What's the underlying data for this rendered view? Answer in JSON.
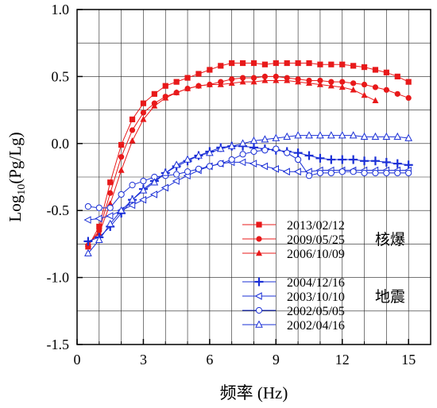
{
  "chart_data": {
    "type": "line",
    "title": "",
    "xlabel": "频率 (Hz)",
    "ylabel_main": "Log",
    "ylabel_sub": "10",
    "ylabel_rest": "(Pg/Lg)",
    "xlim": [
      0,
      16
    ],
    "ylim": [
      -1.5,
      1.0
    ],
    "xticks": [
      0,
      3,
      6,
      9,
      12,
      15
    ],
    "xtick_labels": [
      "0",
      "3",
      "6",
      "9",
      "12",
      "15"
    ],
    "yticks": [
      1.0,
      0.5,
      0.0,
      -0.5,
      -1.0,
      -1.5
    ],
    "ytick_labels": [
      "1.0",
      "0.5",
      "0.0",
      "-0.5",
      "-1.0",
      "-1.5"
    ],
    "grid": true,
    "legend_placement": "bottom-right",
    "legend_groups": [
      {
        "label": "核爆",
        "series": [
          0,
          1,
          2
        ]
      },
      {
        "label": "地震",
        "series": [
          3,
          4,
          5,
          6
        ]
      }
    ],
    "series": [
      {
        "name": "2013/02/12",
        "color": "#e8191a",
        "marker": "square-filled",
        "x": [
          0.5,
          1.0,
          1.5,
          2.0,
          2.5,
          3.0,
          3.5,
          4.0,
          4.5,
          5.0,
          5.5,
          6.0,
          6.5,
          7.0,
          7.5,
          8.0,
          8.5,
          9.0,
          9.5,
          10.0,
          10.5,
          11.0,
          11.5,
          12.0,
          12.5,
          13.0,
          13.5,
          14.0,
          14.5,
          15.0
        ],
        "y": [
          -0.77,
          -0.62,
          -0.29,
          -0.01,
          0.18,
          0.3,
          0.37,
          0.43,
          0.46,
          0.49,
          0.52,
          0.55,
          0.58,
          0.6,
          0.6,
          0.6,
          0.59,
          0.6,
          0.6,
          0.6,
          0.6,
          0.59,
          0.59,
          0.59,
          0.58,
          0.57,
          0.55,
          0.53,
          0.5,
          0.46
        ]
      },
      {
        "name": "2009/05/25",
        "color": "#e8191a",
        "marker": "circle-filled",
        "x": [
          0.5,
          1.0,
          1.5,
          2.0,
          2.5,
          3.0,
          3.5,
          4.0,
          4.5,
          5.0,
          5.5,
          6.0,
          6.5,
          7.0,
          7.5,
          8.0,
          8.5,
          9.0,
          9.5,
          10.0,
          10.5,
          11.0,
          11.5,
          12.0,
          12.5,
          13.0,
          13.5,
          14.0,
          14.5,
          15.0
        ],
        "y": [
          -0.76,
          -0.65,
          -0.37,
          -0.1,
          0.1,
          0.23,
          0.3,
          0.35,
          0.38,
          0.41,
          0.43,
          0.44,
          0.46,
          0.48,
          0.49,
          0.49,
          0.5,
          0.5,
          0.49,
          0.48,
          0.47,
          0.47,
          0.46,
          0.46,
          0.45,
          0.44,
          0.42,
          0.4,
          0.37,
          0.34
        ]
      },
      {
        "name": "2006/10/09",
        "color": "#e8191a",
        "marker": "triangle-filled",
        "x": [
          0.5,
          1.0,
          1.5,
          2.0,
          2.5,
          3.0,
          3.5,
          4.0,
          4.5,
          5.0,
          5.5,
          6.0,
          6.5,
          7.0,
          7.5,
          8.0,
          8.5,
          9.0,
          9.5,
          10.0,
          10.5,
          11.0,
          11.5,
          12.0,
          12.5,
          13.0,
          13.5
        ],
        "y": [
          -0.75,
          -0.67,
          -0.45,
          -0.2,
          0.02,
          0.18,
          0.28,
          0.34,
          0.38,
          0.41,
          0.43,
          0.44,
          0.44,
          0.45,
          0.46,
          0.46,
          0.47,
          0.47,
          0.47,
          0.46,
          0.45,
          0.44,
          0.43,
          0.42,
          0.4,
          0.36,
          0.32
        ]
      },
      {
        "name": "2004/12/16",
        "color": "#1a2fd6",
        "marker": "plus",
        "x": [
          0.5,
          1.0,
          1.5,
          2.0,
          2.5,
          3.0,
          3.5,
          4.0,
          4.5,
          5.0,
          5.5,
          6.0,
          6.5,
          7.0,
          7.5,
          8.0,
          8.5,
          9.0,
          9.5,
          10.0,
          10.5,
          11.0,
          11.5,
          12.0,
          12.5,
          13.0,
          13.5,
          14.0,
          14.5,
          15.0
        ],
        "y": [
          -0.73,
          -0.7,
          -0.62,
          -0.52,
          -0.42,
          -0.34,
          -0.28,
          -0.22,
          -0.17,
          -0.13,
          -0.09,
          -0.06,
          -0.03,
          -0.02,
          -0.02,
          -0.03,
          -0.04,
          -0.05,
          -0.06,
          -0.07,
          -0.09,
          -0.11,
          -0.12,
          -0.12,
          -0.12,
          -0.13,
          -0.13,
          -0.14,
          -0.15,
          -0.16
        ]
      },
      {
        "name": "2003/10/10",
        "color": "#1a2fd6",
        "marker": "triangle-left-open",
        "x": [
          0.5,
          1.0,
          1.5,
          2.0,
          2.5,
          3.0,
          3.5,
          4.0,
          4.5,
          5.0,
          5.5,
          6.0,
          6.5,
          7.0,
          7.5,
          8.0,
          8.5,
          9.0,
          9.5,
          10.0,
          10.5,
          11.0,
          11.5,
          12.0,
          12.5,
          13.0,
          13.5,
          14.0,
          14.5,
          15.0
        ],
        "y": [
          -0.57,
          -0.56,
          -0.54,
          -0.5,
          -0.46,
          -0.42,
          -0.38,
          -0.33,
          -0.28,
          -0.24,
          -0.2,
          -0.17,
          -0.15,
          -0.14,
          -0.14,
          -0.15,
          -0.17,
          -0.19,
          -0.21,
          -0.21,
          -0.21,
          -0.2,
          -0.2,
          -0.2,
          -0.2,
          -0.2,
          -0.2,
          -0.2,
          -0.2,
          -0.2
        ]
      },
      {
        "name": "2002/05/05",
        "color": "#1a2fd6",
        "marker": "circle-open",
        "x": [
          0.5,
          1.0,
          1.5,
          2.0,
          2.5,
          3.0,
          3.5,
          4.0,
          4.5,
          5.0,
          5.5,
          6.0,
          6.5,
          7.0,
          7.5,
          8.0,
          8.5,
          9.0,
          9.5,
          10.0,
          10.5,
          11.0,
          11.5,
          12.0,
          12.5,
          13.0,
          13.5,
          14.0,
          14.5,
          15.0
        ],
        "y": [
          -0.47,
          -0.48,
          -0.48,
          -0.38,
          -0.31,
          -0.28,
          -0.25,
          -0.24,
          -0.23,
          -0.21,
          -0.19,
          -0.17,
          -0.15,
          -0.12,
          -0.08,
          -0.06,
          -0.05,
          -0.04,
          -0.07,
          -0.12,
          -0.24,
          -0.22,
          -0.22,
          -0.21,
          -0.21,
          -0.22,
          -0.22,
          -0.22,
          -0.22,
          -0.22
        ]
      },
      {
        "name": "2002/04/16",
        "color": "#1a2fd6",
        "marker": "triangle-open",
        "x": [
          0.5,
          1.0,
          1.5,
          2.0,
          2.5,
          3.0,
          3.5,
          4.0,
          4.5,
          5.0,
          5.5,
          6.0,
          6.5,
          7.0,
          7.5,
          8.0,
          8.5,
          9.0,
          9.5,
          10.0,
          10.5,
          11.0,
          11.5,
          12.0,
          12.5,
          13.0,
          13.5,
          14.0,
          14.5,
          15.0
        ],
        "y": [
          -0.82,
          -0.72,
          -0.6,
          -0.5,
          -0.42,
          -0.35,
          -0.29,
          -0.22,
          -0.16,
          -0.12,
          -0.09,
          -0.07,
          -0.04,
          -0.02,
          0.0,
          0.02,
          0.03,
          0.04,
          0.05,
          0.06,
          0.06,
          0.06,
          0.06,
          0.06,
          0.06,
          0.05,
          0.05,
          0.05,
          0.05,
          0.04
        ]
      }
    ]
  }
}
